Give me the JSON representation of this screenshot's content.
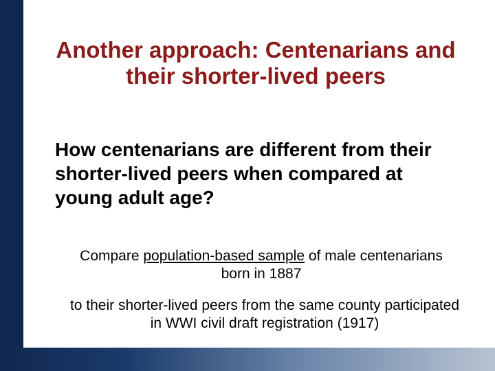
{
  "colors": {
    "title_color": "#8b1a1a",
    "text_color": "#000000",
    "left_bar_color": "#102850",
    "bottom_bar_gradient_start": "#102850",
    "bottom_bar_gradient_end": "#b8c3d2",
    "background": "#ffffff"
  },
  "typography": {
    "font_family": "Verdana",
    "title_fontsize": 33,
    "title_weight": "bold",
    "subtitle_fontsize": 28,
    "subtitle_weight": "bold",
    "body_fontsize": 21
  },
  "layout": {
    "slide_width": 720,
    "slide_height": 540,
    "left_bar_width": 34,
    "bottom_bar_height": 34
  },
  "title": "Another approach: Centenarians and their shorter-lived peers",
  "subtitle": "How centenarians are different from their shorter-lived peers when compared at young adult age?",
  "body1_pre": "Compare ",
  "body1_u": "population-based sample",
  "body1_post": " of male centenarians born in 1887",
  "body2": "to their shorter-lived peers from the same county participated in WWI civil draft registration (1917)"
}
